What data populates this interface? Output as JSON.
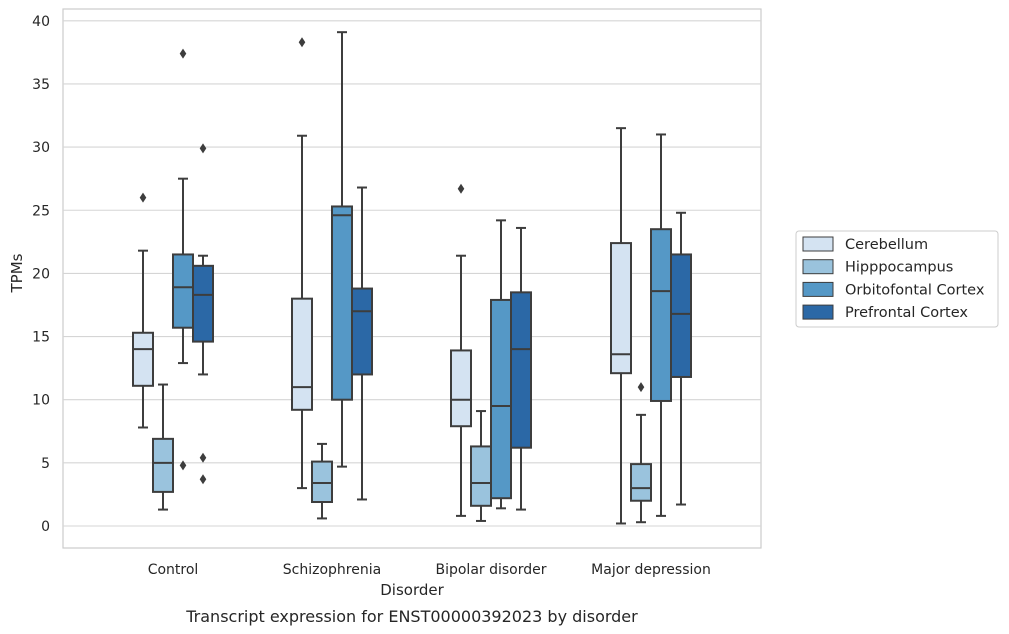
{
  "chart_data": {
    "type": "box",
    "xlabel": "Disorder",
    "ylabel": "TPMs",
    "caption": "Transcript expression for ENST00000392023 by disorder",
    "ylim": [
      -1.7,
      40.9
    ],
    "yticks": [
      0,
      5,
      10,
      15,
      20,
      25,
      30,
      35,
      40
    ],
    "grid": "horizontal",
    "legend_position": "right",
    "categories": [
      "Control",
      "Schizophrenia",
      "Bipolar disorder",
      "Major depression"
    ],
    "series": [
      {
        "name": "Cerebellum",
        "color": "#d4e3f2",
        "boxes": [
          {
            "whisker_low": 7.8,
            "q1": 11.1,
            "median": 14.0,
            "q3": 15.3,
            "whisker_high": 21.8,
            "outliers": [
              26.0
            ]
          },
          {
            "whisker_low": 3.0,
            "q1": 9.2,
            "median": 11.0,
            "q3": 18.0,
            "whisker_high": 30.9,
            "outliers": [
              38.3
            ]
          },
          {
            "whisker_low": 0.8,
            "q1": 7.9,
            "median": 10.0,
            "q3": 13.9,
            "whisker_high": 21.4,
            "outliers": [
              26.7
            ]
          },
          {
            "whisker_low": 0.2,
            "q1": 12.1,
            "median": 13.6,
            "q3": 22.4,
            "whisker_high": 31.5,
            "outliers": []
          }
        ]
      },
      {
        "name": "Hipppocampus",
        "color": "#9ac3dd",
        "boxes": [
          {
            "whisker_low": 1.3,
            "q1": 2.7,
            "median": 5.0,
            "q3": 6.9,
            "whisker_high": 11.2,
            "outliers": []
          },
          {
            "whisker_low": 0.6,
            "q1": 1.9,
            "median": 3.4,
            "q3": 5.1,
            "whisker_high": 6.5,
            "outliers": []
          },
          {
            "whisker_low": 0.4,
            "q1": 1.6,
            "median": 3.4,
            "q3": 6.3,
            "whisker_high": 9.1,
            "outliers": []
          },
          {
            "whisker_low": 0.3,
            "q1": 2.0,
            "median": 3.0,
            "q3": 4.9,
            "whisker_high": 8.8,
            "outliers": [
              11.0
            ]
          }
        ]
      },
      {
        "name": "Orbitofontal Cortex",
        "color": "#5598c6",
        "boxes": [
          {
            "whisker_low": 12.9,
            "q1": 15.7,
            "median": 18.9,
            "q3": 21.5,
            "whisker_high": 27.5,
            "outliers": [
              4.8,
              37.4
            ]
          },
          {
            "whisker_low": 4.7,
            "q1": 10.0,
            "median": 24.6,
            "q3": 25.3,
            "whisker_high": 39.1,
            "outliers": []
          },
          {
            "whisker_low": 1.4,
            "q1": 2.2,
            "median": 9.5,
            "q3": 17.9,
            "whisker_high": 24.2,
            "outliers": []
          },
          {
            "whisker_low": 0.8,
            "q1": 9.9,
            "median": 18.6,
            "q3": 23.5,
            "whisker_high": 31.0,
            "outliers": []
          }
        ]
      },
      {
        "name": "Prefrontal Cortex",
        "color": "#2b68a6",
        "boxes": [
          {
            "whisker_low": 12.0,
            "q1": 14.6,
            "median": 18.3,
            "q3": 20.6,
            "whisker_high": 21.4,
            "outliers": [
              3.7,
              5.4,
              29.9
            ]
          },
          {
            "whisker_low": 2.1,
            "q1": 12.0,
            "median": 17.0,
            "q3": 18.8,
            "whisker_high": 26.8,
            "outliers": []
          },
          {
            "whisker_low": 1.3,
            "q1": 6.2,
            "median": 14.0,
            "q3": 18.5,
            "whisker_high": 23.6,
            "outliers": []
          },
          {
            "whisker_low": 1.7,
            "q1": 11.8,
            "median": 16.8,
            "q3": 21.5,
            "whisker_high": 24.8,
            "outliers": []
          }
        ]
      }
    ]
  }
}
